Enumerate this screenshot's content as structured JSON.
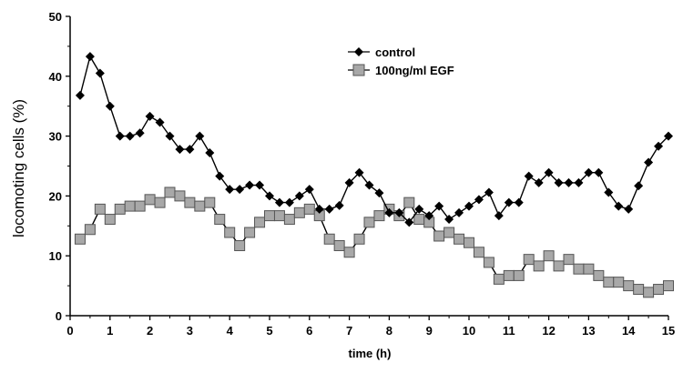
{
  "chart_data": {
    "type": "line",
    "xlabel": "time (h)",
    "ylabel": "locomoting cells (%)",
    "xlim": [
      0,
      15
    ],
    "ylim": [
      0,
      50
    ],
    "xticks": [
      0,
      1,
      2,
      3,
      4,
      5,
      6,
      7,
      8,
      9,
      10,
      11,
      12,
      13,
      14,
      15
    ],
    "yticks": [
      0,
      10,
      20,
      30,
      40,
      50
    ],
    "grid": false,
    "legend_position": "top-right",
    "series": [
      {
        "name": "control",
        "marker": "diamond",
        "color": "#000000",
        "x": [
          0.25,
          0.5,
          0.75,
          1.0,
          1.25,
          1.5,
          1.75,
          2.0,
          2.25,
          2.5,
          2.75,
          3.0,
          3.25,
          3.5,
          3.75,
          4.0,
          4.25,
          4.5,
          4.75,
          5.0,
          5.25,
          5.5,
          5.75,
          6.0,
          6.25,
          6.5,
          6.75,
          7.0,
          7.25,
          7.5,
          7.75,
          8.0,
          8.25,
          8.5,
          8.75,
          9.0,
          9.25,
          9.5,
          9.75,
          10.0,
          10.25,
          10.5,
          10.75,
          11.0,
          11.25,
          11.5,
          11.75,
          12.0,
          12.25,
          12.5,
          12.75,
          13.0,
          13.25,
          13.5,
          13.75,
          14.0,
          14.25,
          14.5,
          14.75,
          15.0
        ],
        "y": [
          36.8,
          43.3,
          40.5,
          35.0,
          30.0,
          30.0,
          30.5,
          33.3,
          32.3,
          30.0,
          27.8,
          27.8,
          30.0,
          27.2,
          23.3,
          21.1,
          21.1,
          21.8,
          21.8,
          20.0,
          18.9,
          18.9,
          20.0,
          21.1,
          17.8,
          17.8,
          18.4,
          22.2,
          23.9,
          21.8,
          20.5,
          17.2,
          17.2,
          15.6,
          17.8,
          16.7,
          18.3,
          16.1,
          17.2,
          18.3,
          19.4,
          20.6,
          16.7,
          18.9,
          18.9,
          23.3,
          22.2,
          23.9,
          22.2,
          22.2,
          22.2,
          23.9,
          23.9,
          20.6,
          18.3,
          17.8,
          21.7,
          25.6,
          28.3,
          30.0
        ]
      },
      {
        "name": "100ng/ml EGF",
        "marker": "square",
        "color": "#a8a8a8",
        "x": [
          0.25,
          0.5,
          0.75,
          1.0,
          1.25,
          1.5,
          1.75,
          2.0,
          2.25,
          2.5,
          2.75,
          3.0,
          3.25,
          3.5,
          3.75,
          4.0,
          4.25,
          4.5,
          4.75,
          5.0,
          5.25,
          5.5,
          5.75,
          6.0,
          6.25,
          6.5,
          6.75,
          7.0,
          7.25,
          7.5,
          7.75,
          8.0,
          8.25,
          8.5,
          8.75,
          9.0,
          9.25,
          9.5,
          9.75,
          10.0,
          10.25,
          10.5,
          10.75,
          11.0,
          11.25,
          11.5,
          11.75,
          12.0,
          12.25,
          12.5,
          12.75,
          13.0,
          13.25,
          13.5,
          13.75,
          14.0,
          14.25,
          14.5,
          14.75,
          15.0
        ],
        "y": [
          12.8,
          14.4,
          17.8,
          16.1,
          17.8,
          18.3,
          18.3,
          19.4,
          18.9,
          20.6,
          20.0,
          18.9,
          18.3,
          18.9,
          16.1,
          13.9,
          11.7,
          13.9,
          15.6,
          16.7,
          16.7,
          16.1,
          17.2,
          17.8,
          16.7,
          12.8,
          11.7,
          10.6,
          12.8,
          15.6,
          16.7,
          17.8,
          16.7,
          18.9,
          16.1,
          15.6,
          13.3,
          13.9,
          12.8,
          12.2,
          10.6,
          8.9,
          6.1,
          6.7,
          6.7,
          9.4,
          8.3,
          10.0,
          8.3,
          9.4,
          7.8,
          7.8,
          6.7,
          5.6,
          5.6,
          5.0,
          4.4,
          3.9,
          4.4,
          5.0
        ]
      }
    ]
  }
}
